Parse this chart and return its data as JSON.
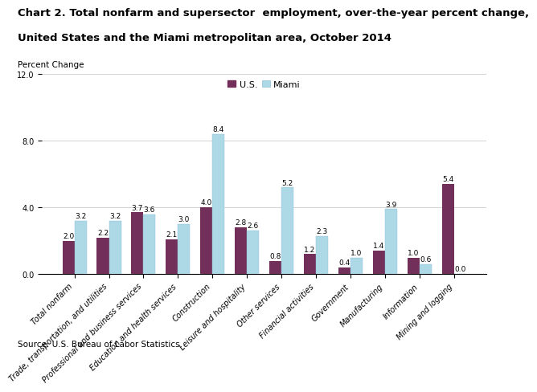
{
  "title_line1": "Chart 2. Total nonfarm and supersector  employment, over-the-year percent change,",
  "title_line2": "United States and the Miami metropolitan area, October 2014",
  "ylabel": "Percent Change",
  "source": "Source: U.S. Bureau of Labor Statistics.",
  "categories": [
    "Total nonfarm",
    "Trade, transportation, and utilities",
    "Professional and business services",
    "Education and health services",
    "Construction",
    "Leisure and hospitality",
    "Other services",
    "Financial activities",
    "Government",
    "Manufacturing",
    "Information",
    "Mining and logging"
  ],
  "us_values": [
    2.0,
    2.2,
    3.7,
    2.1,
    4.0,
    2.8,
    0.8,
    1.2,
    0.4,
    1.4,
    1.0,
    5.4
  ],
  "miami_values": [
    3.2,
    3.2,
    3.6,
    3.0,
    8.4,
    2.6,
    5.2,
    2.3,
    1.0,
    3.9,
    0.6,
    0.0
  ],
  "us_color": "#722F5A",
  "miami_color": "#ADD8E6",
  "ylim": [
    0.0,
    12.0
  ],
  "yticks": [
    0.0,
    4.0,
    8.0,
    12.0
  ],
  "bar_width": 0.35,
  "legend_labels": [
    "U.S.",
    "Miami"
  ],
  "title_fontsize": 9.5,
  "label_fontsize": 7.5,
  "tick_fontsize": 7,
  "value_fontsize": 6.5
}
